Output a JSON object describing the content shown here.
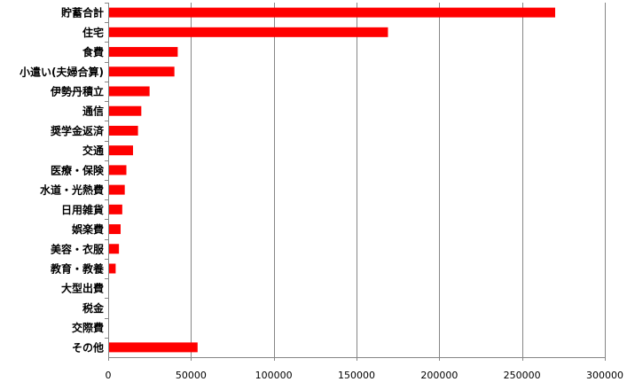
{
  "chart_data": {
    "type": "bar",
    "orientation": "horizontal",
    "categories": [
      "貯蓄合計",
      "住宅",
      "食費",
      "小遣い(夫婦合算)",
      "伊勢丹積立",
      "通信",
      "奨学金返済",
      "交通",
      "医療・保険",
      "水道・光熱費",
      "日用雑貨",
      "娯楽費",
      "美容・衣服",
      "教育・教養",
      "大型出費",
      "税金",
      "交際費",
      "その他"
    ],
    "values": [
      270000,
      169000,
      42000,
      40000,
      25000,
      20000,
      18000,
      15000,
      11000,
      10000,
      8500,
      7500,
      6500,
      4500,
      0,
      0,
      0,
      54000
    ],
    "xlim": [
      0,
      300000
    ],
    "x_ticks": [
      "0",
      "50000",
      "100000",
      "150000",
      "200000",
      "250000",
      "300000"
    ],
    "x_tick_values": [
      0,
      50000,
      100000,
      150000,
      200000,
      250000,
      300000
    ],
    "grid": "vertical",
    "legend": "none",
    "bar_color": "#ff0000"
  }
}
